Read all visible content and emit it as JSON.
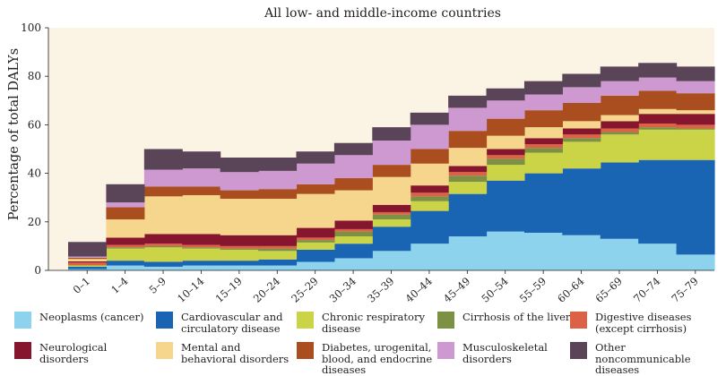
{
  "chart_data": {
    "type": "area",
    "title": "All low- and middle-income countries",
    "ylabel": "Percentage of total DALYs",
    "xlabel": "",
    "ylim": [
      0,
      100
    ],
    "yticks": [
      0,
      20,
      40,
      60,
      80,
      100
    ],
    "grid": false,
    "stacked": true,
    "step": true,
    "legend_position": "bottom",
    "plot_background": "#fbf4e4",
    "categories": [
      "0–1",
      "1–4",
      "5–9",
      "10–14",
      "15–19",
      "20–24",
      "25–29",
      "30–34",
      "35–39",
      "40–44",
      "45–49",
      "50–54",
      "55–59",
      "60–64",
      "65–69",
      "70–74",
      "75–79"
    ],
    "series": [
      {
        "name": "Neoplasms (cancer)",
        "color": "#8dd3ee",
        "values": [
          0.5,
          2,
          1.5,
          2,
          2,
          2,
          3.5,
          5,
          8,
          11,
          14,
          16,
          15.5,
          14.5,
          13,
          11,
          6.5
        ]
      },
      {
        "name": "Cardiovascular and circulatory disease",
        "color": "#1a64b4",
        "values": [
          1,
          2,
          2,
          2,
          2,
          2.5,
          5,
          6,
          10,
          13.5,
          17.5,
          21,
          24.5,
          27.5,
          31.5,
          34.5,
          39
        ]
      },
      {
        "name": "Chronic respiratory disease",
        "color": "#cbd347",
        "values": [
          0.5,
          5,
          6,
          5,
          4.5,
          3.5,
          3,
          3,
          3,
          4,
          5,
          6.5,
          8.5,
          11,
          11.5,
          12.5,
          12.5
        ]
      },
      {
        "name": "Cirrhosis of the liver",
        "color": "#7c9143",
        "values": [
          0.2,
          0.5,
          0.5,
          0.5,
          0.5,
          1,
          1,
          2,
          2,
          2,
          2.5,
          2.5,
          2,
          1.5,
          1,
          1,
          0.5
        ]
      },
      {
        "name": "Digestive diseases (except cirrhosis)",
        "color": "#dd6145",
        "values": [
          1,
          1,
          1,
          1,
          1,
          1,
          1,
          1,
          1,
          1.5,
          1.5,
          1.5,
          1.5,
          1.5,
          1.5,
          1.5,
          1.5
        ]
      },
      {
        "name": "Neurological disorders",
        "color": "#86162e",
        "values": [
          0.5,
          3,
          4,
          4.5,
          4.5,
          4.5,
          4,
          3.5,
          3,
          3,
          2.5,
          2.5,
          2.5,
          2.5,
          3,
          4,
          4.5
        ]
      },
      {
        "name": "Mental and behavioral disorders",
        "color": "#f6d68c",
        "values": [
          1,
          7.5,
          15.5,
          16,
          15,
          15,
          14,
          12.5,
          11.5,
          9,
          7.5,
          5.5,
          4.5,
          3,
          2.5,
          2,
          1.5
        ]
      },
      {
        "name": "Diabetes, urogenital, blood, and endocrine diseases",
        "color": "#aa4e20",
        "values": [
          0.5,
          5,
          4,
          3.5,
          3.5,
          4,
          4,
          5,
          5,
          6,
          7,
          7,
          7,
          7.5,
          8,
          7.5,
          7
        ]
      },
      {
        "name": "Musculoskeletal disorders",
        "color": "#cd99d0",
        "values": [
          0.5,
          2,
          7,
          7.5,
          7.5,
          7.5,
          8.5,
          9.5,
          10,
          10,
          9.5,
          7.5,
          6.5,
          6.5,
          6,
          5.5,
          5
        ]
      },
      {
        "name": "Other noncommunicable diseases",
        "color": "#5a4458",
        "values": [
          6,
          7.5,
          8.5,
          7,
          6,
          5.5,
          5,
          5,
          5.5,
          5,
          5,
          5,
          5.5,
          5.5,
          6,
          6,
          6
        ]
      }
    ],
    "legend_rows": [
      [
        "Neoplasms (cancer)",
        "Cardiovascular and circulatory disease",
        "Chronic respiratory disease",
        "Cirrhosis of the liver",
        "Digestive diseases (except cirrhosis)"
      ],
      [
        "Neurological disorders",
        "Mental and behavioral disorders",
        "Diabetes, urogenital, blood, and endocrine diseases",
        "Musculoskeletal disorders",
        "Other noncommunicable diseases"
      ]
    ]
  }
}
